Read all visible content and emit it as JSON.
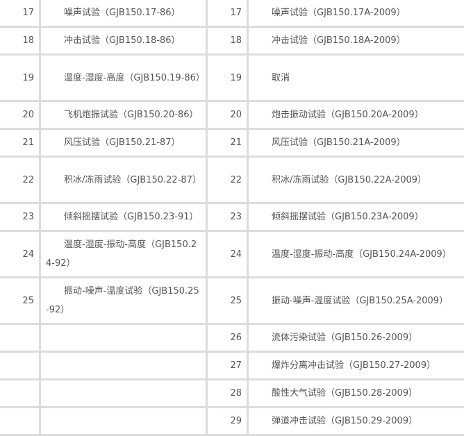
{
  "rows": [
    {
      "old_no": "17",
      "old": "噪声试验（GJB150.17-86）",
      "new_no": "17",
      "new": "噪声试验（GJB150.17A-2009）"
    },
    {
      "old_no": "18",
      "old": "冲击试验（GJB150.18-86）",
      "new_no": "18",
      "new": "冲击试验（GJB150.18A-2009）"
    },
    {
      "old_no": "19",
      "old": "温度-湿度-高度（GJB150.19-86）",
      "new_no": "19",
      "new": "取消"
    },
    {
      "old_no": "20",
      "old": "飞机炮振试验（GJB150.20-86）",
      "new_no": "20",
      "new": "炮击振动试验（GJB150.20A-2009）"
    },
    {
      "old_no": "21",
      "old": "风压试验（GJB150.21-87）",
      "new_no": "21",
      "new": "风压试验（GJB150.21A-2009）"
    },
    {
      "old_no": "22",
      "old": "积冰/冻雨试验（GJB150.22-87）",
      "new_no": "22",
      "new": "积冰/冻雨试验（GJB150.22A-2009）"
    },
    {
      "old_no": "23",
      "old": "倾斜摇摆试验（GJB150.23-91）",
      "new_no": "23",
      "new": "倾斜摇摆试验（GJB150.23A-2009）"
    },
    {
      "old_no": "24",
      "old": "温度-湿度-振动-高度（GJB150.24-92）",
      "new_no": "24",
      "new": "温度-湿度-振动-高度（GJB150.24A-2009）"
    },
    {
      "old_no": "25",
      "old": "振动-噪声-温度试验（GJB150.25-92）",
      "new_no": "25",
      "new": "振动-噪声-温度试验（GJB150.25A-2009）"
    },
    {
      "old_no": "",
      "old": "",
      "new_no": "26",
      "new": "流体污染试验（GJB150.26-2009）"
    },
    {
      "old_no": "",
      "old": "",
      "new_no": "27",
      "new": "爆炸分离冲击试验（GJB150.27-2009）"
    },
    {
      "old_no": "",
      "old": "",
      "new_no": "28",
      "new": "酸性大气试验（GJB150.28-2009）"
    },
    {
      "old_no": "",
      "old": "",
      "new_no": "29",
      "new": "弹道冲击试验（GJB150.29-2009）"
    }
  ]
}
